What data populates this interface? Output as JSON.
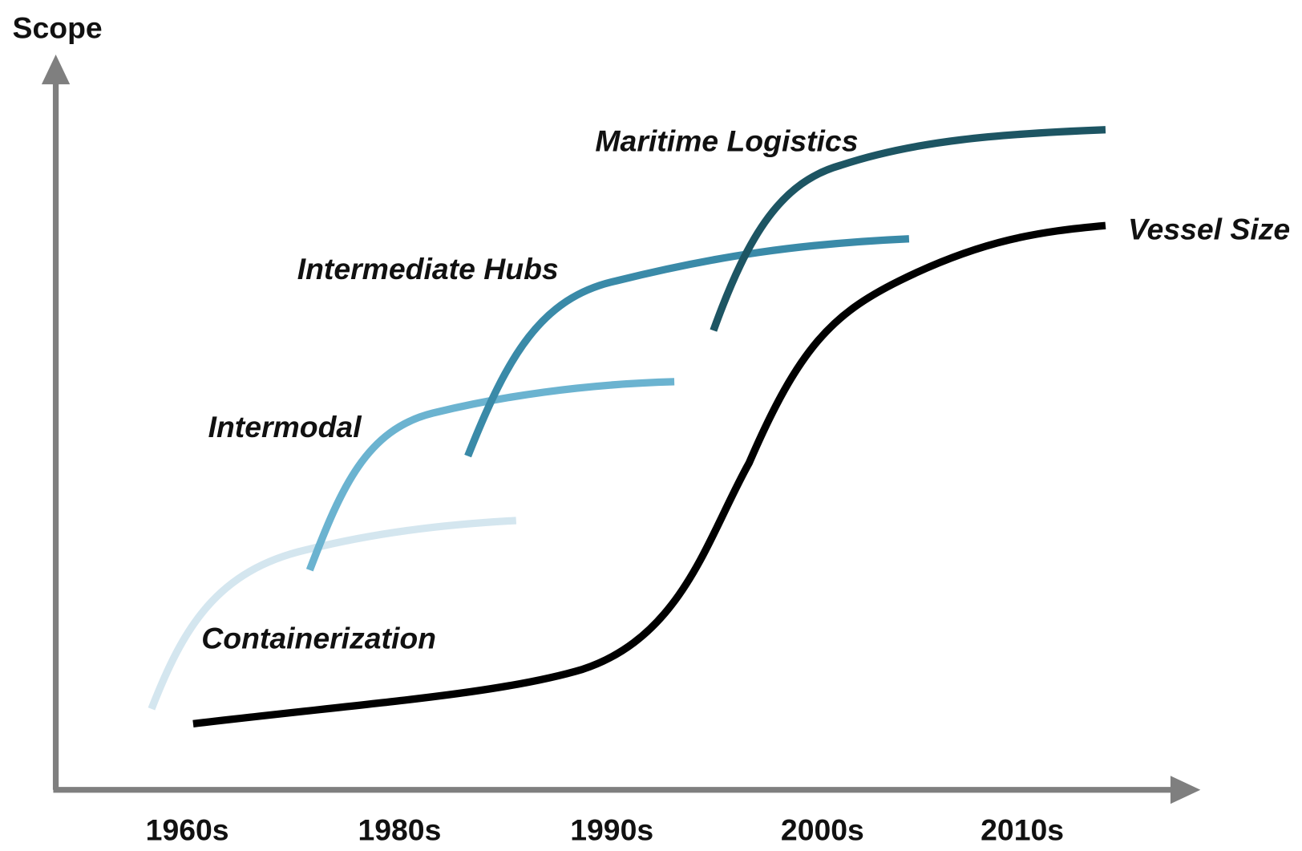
{
  "axes": {
    "y_label": "Scope",
    "x_labels": [
      "1960s",
      "1980s",
      "1990s",
      "2000s",
      "2010s"
    ]
  },
  "curves": [
    {
      "label": "Containerization"
    },
    {
      "label": "Intermodal"
    },
    {
      "label": "Intermediate Hubs"
    },
    {
      "label": "Maritime Logistics"
    },
    {
      "label": "Vessel Size"
    }
  ]
}
